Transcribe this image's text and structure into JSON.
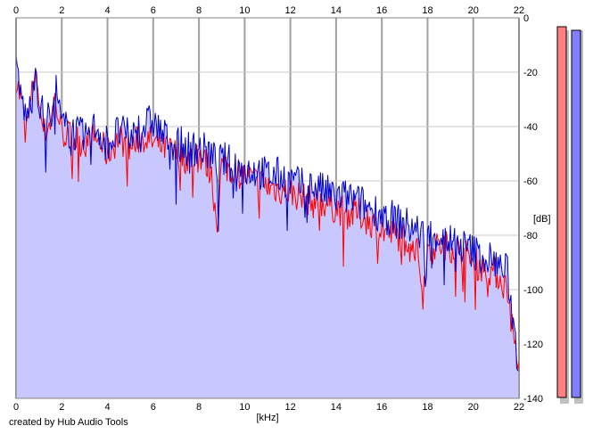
{
  "chart_data": {
    "type": "area",
    "x_unit_label": "[kHz]",
    "y_unit_label": "[dB]",
    "xlim": [
      0,
      22
    ],
    "ylim": [
      -140,
      0
    ],
    "x_ticks": [
      0,
      2,
      4,
      6,
      8,
      10,
      12,
      14,
      16,
      18,
      20,
      22
    ],
    "y_ticks": [
      0,
      -20,
      -40,
      -60,
      -80,
      -100,
      -120,
      -140
    ],
    "y_tick_labels": [
      "0",
      "-20",
      "-40",
      "-60",
      "-80",
      "-100",
      "-120",
      "-140"
    ],
    "grid": true,
    "fill_color": "#c8c8ff",
    "series": [
      {
        "color": "#ff0000",
        "x": [
          0.0,
          0.25,
          0.5,
          0.75,
          0.85,
          1.0,
          1.25,
          1.5,
          1.7,
          2.0,
          2.5,
          3.0,
          3.5,
          4.0,
          4.5,
          5.0,
          5.5,
          6.0,
          6.5,
          7.0,
          7.5,
          8.0,
          8.5,
          8.8,
          9.0,
          9.5,
          10.0,
          10.5,
          11.0,
          11.5,
          12.0,
          12.5,
          13.0,
          13.5,
          14.0,
          14.5,
          15.0,
          15.5,
          16.0,
          16.5,
          17.0,
          17.5,
          17.8,
          18.0,
          18.5,
          19.0,
          19.5,
          20.0,
          20.5,
          21.0,
          21.5,
          21.8,
          22.0
        ],
        "y": [
          -22,
          -32,
          -40,
          -25,
          -16,
          -32,
          -42,
          -38,
          -30,
          -42,
          -44,
          -46,
          -44,
          -50,
          -44,
          -48,
          -44,
          -46,
          -48,
          -50,
          -52,
          -50,
          -56,
          -75,
          -54,
          -56,
          -58,
          -60,
          -62,
          -63,
          -64,
          -66,
          -68,
          -68,
          -70,
          -72,
          -72,
          -75,
          -78,
          -80,
          -80,
          -84,
          -100,
          -86,
          -84,
          -84,
          -86,
          -90,
          -92,
          -94,
          -100,
          -120,
          -126
        ]
      },
      {
        "color": "#0000cc",
        "x": [
          0.0,
          0.25,
          0.5,
          0.75,
          0.85,
          1.0,
          1.25,
          1.5,
          1.7,
          2.0,
          2.5,
          3.0,
          3.5,
          4.0,
          4.5,
          5.0,
          5.5,
          6.0,
          6.5,
          7.0,
          7.5,
          8.0,
          8.5,
          8.8,
          9.0,
          9.5,
          10.0,
          10.5,
          11.0,
          11.5,
          12.0,
          12.5,
          13.0,
          13.5,
          14.0,
          14.5,
          15.0,
          15.5,
          16.0,
          16.5,
          17.0,
          17.5,
          17.8,
          18.0,
          18.5,
          19.0,
          19.5,
          20.0,
          20.5,
          21.0,
          21.5,
          21.8,
          22.0
        ],
        "y": [
          -20,
          -30,
          -38,
          -22,
          -18,
          -30,
          -38,
          -36,
          -24,
          -40,
          -42,
          -44,
          -40,
          -46,
          -42,
          -44,
          -40,
          -38,
          -44,
          -46,
          -48,
          -48,
          -50,
          -54,
          -52,
          -54,
          -56,
          -56,
          -58,
          -58,
          -60,
          -62,
          -62,
          -64,
          -66,
          -66,
          -68,
          -70,
          -72,
          -74,
          -76,
          -78,
          -80,
          -80,
          -80,
          -82,
          -84,
          -86,
          -88,
          -90,
          -94,
          -116,
          -130
        ]
      }
    ]
  },
  "level_meters": [
    {
      "color": "#ff8080",
      "level": 0.0
    },
    {
      "color": "#8080ff",
      "level": 0.0
    }
  ],
  "footer": {
    "credit": "created by Hub Audio Tools"
  }
}
